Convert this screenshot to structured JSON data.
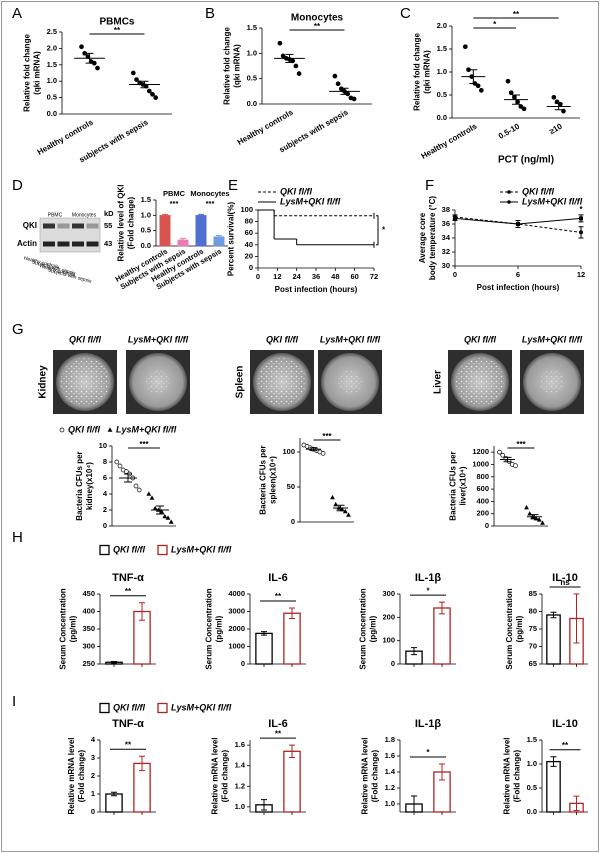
{
  "chart_data": [
    {
      "type": "dot",
      "panel": "A",
      "title": "PBMCs",
      "ylabel": [
        "Relative fold change",
        "(qki mRNA)"
      ],
      "categories": [
        "Healthy controls",
        "subjects with sepsis"
      ],
      "groups": [
        [
          2.05,
          1.85,
          1.75,
          1.6,
          1.55,
          1.4
        ],
        [
          1.25,
          1.05,
          0.95,
          0.9,
          0.85,
          0.7,
          0.6,
          0.5
        ]
      ],
      "means": [
        1.7,
        0.9
      ],
      "errors": [
        0.15,
        0.1
      ],
      "ylim": [
        0,
        2.5
      ],
      "yticks": [
        {
          "value": 0,
          "label": "0.0"
        },
        0.5,
        {
          "value": 1,
          "label": "1.0"
        },
        1.5,
        {
          "value": 2,
          "label": "2.0"
        },
        2.5
      ],
      "significance": [
        "**"
      ]
    },
    {
      "type": "dot",
      "panel": "B",
      "title": "Monocytes",
      "ylabel": [
        "Relative fold change",
        "(qki mRNA)"
      ],
      "categories": [
        "Healthy controls",
        "subjects with sepsis"
      ],
      "groups": [
        [
          1.2,
          0.95,
          0.9,
          0.88,
          0.85,
          0.75,
          0.6
        ],
        [
          0.55,
          0.4,
          0.3,
          0.25,
          0.2,
          0.12,
          0.1
        ]
      ],
      "means": [
        0.9,
        0.25
      ],
      "errors": [
        0.08,
        0.06
      ],
      "ylim": [
        0,
        1.5
      ],
      "yticks": [
        {
          "value": 0,
          "label": "0.0"
        },
        0.5,
        {
          "value": 1,
          "label": "1.0"
        },
        1.5
      ],
      "significance": [
        "**"
      ]
    },
    {
      "type": "dot",
      "panel": "C",
      "xlabel": "PCT (ng/ml)",
      "ylabel": [
        "Relative fold change",
        "(qki mRNA)"
      ],
      "categories": [
        "Healthy controls",
        "0.5-10",
        "≥10"
      ],
      "groups": [
        [
          1.55,
          1.05,
          0.9,
          0.75,
          0.7,
          0.6
        ],
        [
          0.8,
          0.55,
          0.45,
          0.35,
          0.25,
          0.2
        ],
        [
          0.45,
          0.35,
          0.3,
          0.15
        ]
      ],
      "means": [
        0.9,
        0.4,
        0.25
      ],
      "errors": [
        0.15,
        0.1,
        0.07
      ],
      "ylim": [
        0,
        2
      ],
      "yticks": [
        {
          "value": 0,
          "label": "0.0"
        },
        0.5,
        {
          "value": 1,
          "label": "1.0"
        },
        1.5,
        {
          "value": 2,
          "label": "2.0"
        }
      ],
      "significance": [
        "*",
        "**"
      ]
    },
    {
      "type": "bar",
      "panel": "D",
      "filled": true,
      "blot": {
        "rows": [
          "QKI",
          "Actin"
        ],
        "sizes": [
          "55",
          "43"
        ],
        "unit": "kD",
        "groups": [
          "PBMC",
          "Monocytes"
        ],
        "lanes": [
          "Healthy controls",
          "Subjects with sepsis",
          "Healthy controls",
          "Subjects with sepsis"
        ]
      },
      "ylabel": [
        "Relative level of QKI",
        "(Fold change)"
      ],
      "categories": [
        "Healthy controls",
        "Subjects with sepsis",
        "Healthy controls",
        "Subjects with sepsis"
      ],
      "group_labels": [
        "PBMC",
        "Monocytes"
      ],
      "values": [
        1.0,
        0.2,
        1.0,
        0.3
      ],
      "errors": [
        0.03,
        0.05,
        0.03,
        0.04
      ],
      "colors": [
        "#d9534f",
        "#e87fb0",
        "#4f6fd1",
        "#6f9be0"
      ],
      "ylim": [
        0,
        1.5
      ],
      "yticks": [
        {
          "value": 0,
          "label": "0.0"
        },
        0.5,
        {
          "value": 1,
          "label": "1.0"
        },
        1.5
      ],
      "significance": [
        "***",
        "***"
      ]
    },
    {
      "type": "line",
      "step": true,
      "panel": "E",
      "ylabel": [
        "Percent survival(%)"
      ],
      "xlabel": "Post infection (hours)",
      "xlim": [
        0,
        72
      ],
      "xticks": [
        0,
        12,
        24,
        36,
        48,
        60,
        72
      ],
      "ylim": [
        0,
        100
      ],
      "yticks": [
        0,
        20,
        40,
        60,
        80,
        100
      ],
      "series": [
        {
          "name": "QKI fl/fl",
          "color": "#000000",
          "dashed": true,
          "x": [
            0,
            10,
            72
          ],
          "values": [
            100,
            90,
            90
          ]
        },
        {
          "name": "LysM+QKI fl/fl",
          "color": "#000000",
          "dashed": false,
          "x": [
            0,
            10,
            24,
            72
          ],
          "values": [
            100,
            50,
            40,
            40
          ]
        }
      ],
      "significance": [
        "*"
      ]
    },
    {
      "type": "line",
      "panel": "F",
      "ylabel": [
        "Average core",
        "body temperature (°C)"
      ],
      "xlabel": "Post infection (hours)",
      "xlim": [
        0,
        12
      ],
      "xticks": [
        0,
        6,
        12
      ],
      "ylim": [
        30,
        38
      ],
      "yticks": [
        30,
        32,
        34,
        36,
        38
      ],
      "series": [
        {
          "name": "QKI fl/fl",
          "color": "#000000",
          "dashed": true,
          "x": [
            0,
            6,
            12
          ],
          "values": [
            37,
            36,
            34.8
          ],
          "errors": [
            0.3,
            0.5,
            0.8
          ]
        },
        {
          "name": "LysM+QKI fl/fl",
          "color": "#000000",
          "dashed": false,
          "x": [
            0,
            6,
            12
          ],
          "values": [
            36.8,
            36,
            36.8
          ],
          "errors": [
            0.3,
            0.5,
            0.5
          ]
        }
      ],
      "significance": [
        "*"
      ]
    },
    {
      "type": "dot",
      "panel": "G",
      "organ": "Kidney",
      "image_labels": [
        "QKI fl/fl",
        "LysM+QKI fl/fl"
      ],
      "legend": [
        {
          "name": "QKI fl/fl"
        },
        {
          "name": "LysM+QKI fl/fl"
        }
      ],
      "markers": [
        "circle-open",
        "triangle"
      ],
      "ylabel": [
        "Bacteria CFUs per",
        "kidney(x10⁴)"
      ],
      "groups": [
        [
          8,
          7.5,
          7,
          6.8,
          6.5,
          6,
          5,
          4.5
        ],
        [
          4,
          3.5,
          2.2,
          2,
          1.8,
          1.2,
          1,
          0.5
        ]
      ],
      "means": [
        6,
        2
      ],
      "errors": [
        0.5,
        0.5
      ],
      "ylim": [
        0,
        10
      ],
      "yticks": [
        0,
        2,
        4,
        6,
        8,
        10
      ],
      "significance": [
        "***"
      ]
    },
    {
      "type": "dot",
      "organ": "Spleen",
      "image_labels": [
        "QKI fl/fl",
        "LysM+QKI fl/fl"
      ],
      "markers": [
        "circle-open",
        "triangle"
      ],
      "ylabel": [
        "Bacteria CFUs per",
        "spleen(x10⁴)"
      ],
      "groups": [
        [
          110,
          108,
          106,
          104,
          102,
          100,
          98
        ],
        [
          35,
          25,
          20,
          18,
          15,
          10
        ]
      ],
      "means": [
        104,
        20
      ],
      "errors": [
        2,
        4
      ],
      "ylim": [
        0,
        120
      ],
      "yticks": [
        0,
        50,
        100
      ],
      "significance": [
        "***"
      ]
    },
    {
      "type": "dot",
      "organ": "Liver",
      "image_labels": [
        "QKI fl/fl",
        "LysM+QKI fl/fl"
      ],
      "markers": [
        "circle-open",
        "triangle"
      ],
      "ylabel": [
        "Bacteria CFUs per",
        "liver(x10⁴)"
      ],
      "groups": [
        [
          1200,
          1150,
          1100,
          1050,
          1000,
          980
        ],
        [
          300,
          200,
          150,
          120,
          100,
          50
        ]
      ],
      "means": [
        1080,
        150
      ],
      "errors": [
        35,
        35
      ],
      "ylim": [
        0,
        1300
      ],
      "yticks": [
        0,
        200,
        400,
        600,
        800,
        1000,
        1200
      ],
      "significance": [
        "***"
      ]
    },
    {
      "type": "bar",
      "panel": "H",
      "legend": [
        {
          "name": "QKI fl/fl",
          "color": "#000000"
        },
        {
          "name": "LysM+QKI fl/fl",
          "color": "#b22222"
        }
      ],
      "title": "TNF-α",
      "ylabel": [
        "Serum Concentration",
        "(pg/ml)"
      ],
      "values": [
        255,
        400
      ],
      "errors": [
        2,
        25
      ],
      "colors": [
        "#000000",
        "#b22222"
      ],
      "ylim": [
        250,
        450
      ],
      "yticks": [
        250,
        300,
        350,
        400,
        450
      ],
      "significance": [
        "**"
      ]
    },
    {
      "type": "bar",
      "title": "IL-6",
      "ylabel": [
        "Serum Concentration",
        "(pg/ml)"
      ],
      "values": [
        1750,
        2900
      ],
      "errors": [
        100,
        300
      ],
      "colors": [
        "#000000",
        "#b22222"
      ],
      "ylim": [
        0,
        4000
      ],
      "yticks": [
        0,
        1000,
        2000,
        3000,
        4000
      ],
      "significance": [
        "**"
      ]
    },
    {
      "type": "bar",
      "title": "IL-1β",
      "ylabel": [
        "Serum Concentration",
        "(pg/ml)"
      ],
      "values": [
        55,
        240
      ],
      "errors": [
        15,
        25
      ],
      "colors": [
        "#000000",
        "#b22222"
      ],
      "ylim": [
        0,
        300
      ],
      "yticks": [
        0,
        100,
        200,
        300
      ],
      "significance": [
        "*"
      ]
    },
    {
      "type": "bar",
      "title": "IL-10",
      "ylabel": [
        "Serum Concentration",
        "(pg/ml)"
      ],
      "values": [
        79,
        78
      ],
      "errors": [
        0.8,
        7
      ],
      "colors": [
        "#000000",
        "#b22222"
      ],
      "ylim": [
        65,
        85
      ],
      "yticks": [
        65,
        70,
        75,
        80,
        85
      ],
      "significance": [
        "ns"
      ]
    },
    {
      "type": "bar",
      "panel": "I",
      "legend": [
        {
          "name": "QKI fl/fl",
          "color": "#000000"
        },
        {
          "name": "LysM+QKI fl/fl",
          "color": "#b22222"
        }
      ],
      "title": "TNF-α",
      "ylabel": [
        "Relative mRNA level",
        "(Fold change)"
      ],
      "values": [
        1.0,
        2.7
      ],
      "errors": [
        0.1,
        0.4
      ],
      "colors": [
        "#000000",
        "#b22222"
      ],
      "ylim": [
        0,
        4
      ],
      "yticks": [
        0,
        1,
        2,
        3,
        4
      ],
      "significance": [
        "**"
      ]
    },
    {
      "type": "bar",
      "title": "IL-6",
      "ylabel": [
        "Relative mRNA level",
        "(Fold change)"
      ],
      "values": [
        1.02,
        1.54
      ],
      "errors": [
        0.05,
        0.06
      ],
      "colors": [
        "#000000",
        "#b22222"
      ],
      "ylim": [
        0.95,
        1.65
      ],
      "yticks": [
        {
          "value": 1,
          "label": "1.0"
        },
        1.2,
        1.4,
        1.6
      ],
      "significance": [
        "**"
      ]
    },
    {
      "type": "bar",
      "title": "IL-1β",
      "ylabel": [
        "Relative mRNA level",
        "(Fold change)"
      ],
      "values": [
        1.0,
        1.4
      ],
      "errors": [
        0.1,
        0.1
      ],
      "colors": [
        "#000000",
        "#b22222"
      ],
      "ylim": [
        0.9,
        1.8
      ],
      "yticks": [
        {
          "value": 1,
          "label": "1.0"
        },
        1.2,
        1.4,
        1.6,
        1.8
      ],
      "significance": [
        "*"
      ]
    },
    {
      "type": "bar",
      "title": "IL-10",
      "ylabel": [
        "Relative mRNA level",
        "(Fold change)"
      ],
      "values": [
        1.05,
        0.18
      ],
      "errors": [
        0.1,
        0.15
      ],
      "colors": [
        "#000000",
        "#b22222"
      ],
      "ylim": [
        0,
        1.5
      ],
      "yticks": [
        {
          "value": 0,
          "label": "0.0"
        },
        0.5,
        {
          "value": 1,
          "label": "1.0"
        },
        1.5
      ],
      "significance": [
        "**"
      ]
    }
  ]
}
